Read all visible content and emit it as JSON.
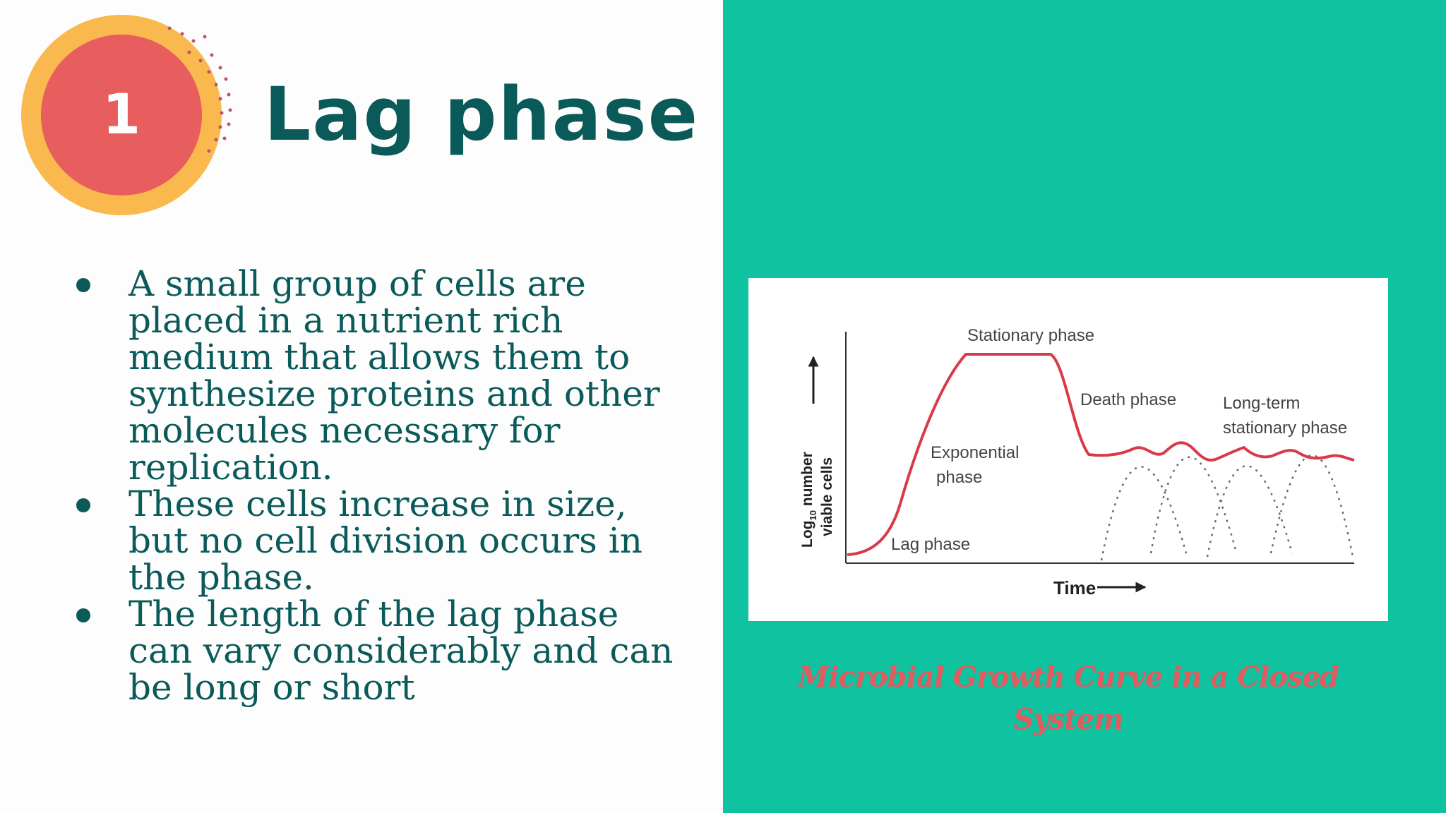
{
  "slide": {
    "number": "1",
    "title": "Lag phase",
    "bullets": [
      "A small group of cells are placed in a nutrient rich medium that allows them to synthesize proteins and other molecules necessary for replication.",
      "These cells increase in size, but no cell division occurs in the phase.",
      "The length of the lag phase can vary considerably and can be long or short"
    ]
  },
  "figure": {
    "phase_labels": {
      "stationary": "Stationary phase",
      "death": "Death phase",
      "long_term_line1": "Long-term",
      "long_term_line2": "stationary phase",
      "exponential_line1": "Exponential",
      "exponential_line2": "phase",
      "lag": "Lag phase"
    },
    "y_axis": {
      "prefix": "Log",
      "subscript": "10",
      "line1_rest": " number",
      "line2": "viable cells"
    },
    "x_axis": {
      "label": "Time"
    },
    "caption": "Microbial Growth Curve in a Closed System"
  },
  "colors": {
    "right_background": "#0fc2a0",
    "title_text": "#0b5a5a",
    "badge_outer": "#f9b94e",
    "badge_inner": "#e85d5d",
    "curve": "#d93a4a",
    "caption": "#e35a5f"
  }
}
